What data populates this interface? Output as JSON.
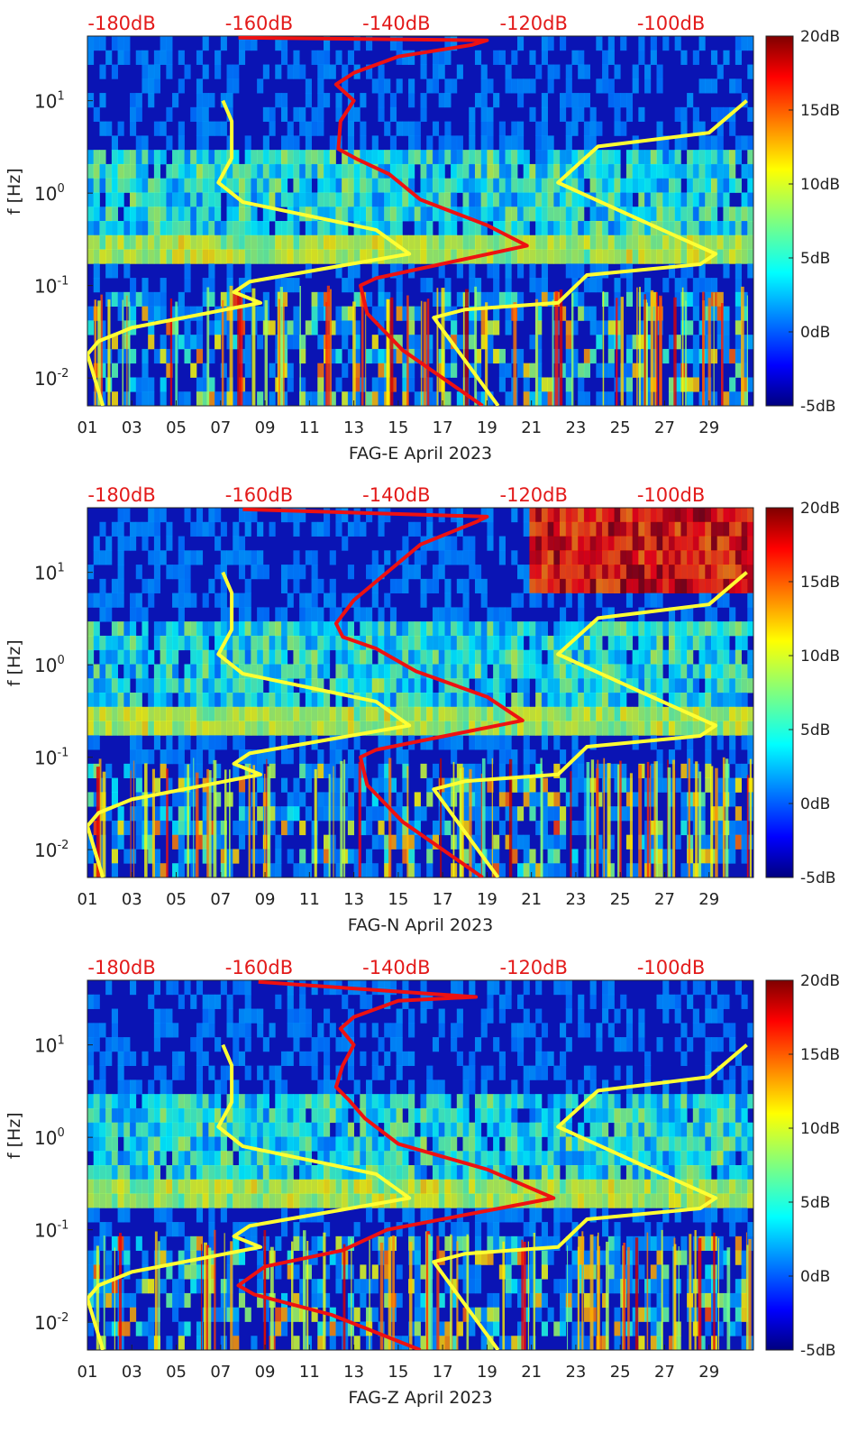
{
  "chart_data": [
    {
      "type": "heatmap",
      "title": "",
      "xlabel": "FAG-E April 2023",
      "ylabel": "f [Hz]",
      "x_ticks": [
        "01",
        "03",
        "05",
        "07",
        "09",
        "11",
        "13",
        "15",
        "17",
        "19",
        "21",
        "23",
        "25",
        "27",
        "29"
      ],
      "y_ticks": [
        {
          "value": 0.01,
          "base": "10",
          "exp": "-2"
        },
        {
          "value": 0.1,
          "base": "10",
          "exp": "-1"
        },
        {
          "value": 1,
          "base": "10",
          "exp": "0"
        },
        {
          "value": 10,
          "base": "10",
          "exp": "1"
        }
      ],
      "ylim": [
        0.005,
        50
      ],
      "y_scale": "log",
      "top_ticks": [
        "-180dB",
        "-160dB",
        "-140dB",
        "-120dB",
        "-100dB"
      ],
      "top_axis_range": [
        -185,
        -88
      ],
      "colorbar": {
        "ticks": [
          "-5dB",
          "0dB",
          "5dB",
          "10dB",
          "15dB",
          "20dB"
        ],
        "range": [
          -5,
          20
        ],
        "colormap": "jet"
      },
      "series": [
        {
          "color": "#ffff33",
          "points": [
            [
              19.5,
              0.005
            ],
            [
              16.6,
              0.045
            ],
            [
              18,
              0.055
            ],
            [
              22.2,
              0.065
            ],
            [
              23.5,
              0.13
            ],
            [
              28.6,
              0.17
            ],
            [
              29.3,
              0.22
            ],
            [
              26,
              0.5
            ],
            [
              22.2,
              1.3
            ],
            [
              24,
              3.2
            ],
            [
              29,
              4.5
            ],
            [
              30.7,
              10
            ]
          ]
        },
        {
          "color": "#ffff33",
          "points": [
            [
              1.7,
              0.005
            ],
            [
              1,
              0.018
            ],
            [
              1.5,
              0.025
            ],
            [
              3,
              0.035
            ],
            [
              8.8,
              0.065
            ],
            [
              7.6,
              0.085
            ],
            [
              8.3,
              0.11
            ],
            [
              15.5,
              0.22
            ],
            [
              14,
              0.4
            ],
            [
              8,
              0.8
            ],
            [
              6.9,
              1.3
            ],
            [
              7.5,
              2.4
            ],
            [
              7.5,
              6
            ],
            [
              7.1,
              10
            ]
          ]
        },
        {
          "color": "#ee1111",
          "points": [
            [
              18.8,
              0.005
            ],
            [
              15.2,
              0.02
            ],
            [
              13.6,
              0.05
            ],
            [
              13.3,
              0.1
            ],
            [
              14,
              0.12
            ],
            [
              20.8,
              0.27
            ],
            [
              19,
              0.45
            ],
            [
              16,
              0.85
            ],
            [
              14.6,
              1.6
            ],
            [
              13.2,
              2.3
            ],
            [
              12.3,
              3
            ],
            [
              12.4,
              6
            ],
            [
              13,
              10
            ],
            [
              12.2,
              15
            ],
            [
              13,
              20
            ],
            [
              15,
              30
            ],
            [
              18.3,
              40
            ],
            [
              19,
              45
            ],
            [
              7.8,
              48
            ]
          ]
        }
      ]
    },
    {
      "type": "heatmap",
      "title": "",
      "xlabel": "FAG-N April 2023",
      "ylabel": "f [Hz]",
      "x_ticks": [
        "01",
        "03",
        "05",
        "07",
        "09",
        "11",
        "13",
        "15",
        "17",
        "19",
        "21",
        "23",
        "25",
        "27",
        "29"
      ],
      "y_ticks": [
        {
          "value": 0.01,
          "base": "10",
          "exp": "-2"
        },
        {
          "value": 0.1,
          "base": "10",
          "exp": "-1"
        },
        {
          "value": 1,
          "base": "10",
          "exp": "0"
        },
        {
          "value": 10,
          "base": "10",
          "exp": "1"
        }
      ],
      "ylim": [
        0.005,
        50
      ],
      "y_scale": "log",
      "top_ticks": [
        "-180dB",
        "-160dB",
        "-140dB",
        "-120dB",
        "-100dB"
      ],
      "top_axis_range": [
        -185,
        -88
      ],
      "colorbar": {
        "ticks": [
          "-5dB",
          "0dB",
          "5dB",
          "10dB",
          "15dB",
          "20dB"
        ],
        "range": [
          -5,
          20
        ],
        "colormap": "jet"
      },
      "series": [
        {
          "color": "#ffff33",
          "points": [
            [
              19.5,
              0.005
            ],
            [
              16.6,
              0.045
            ],
            [
              18,
              0.055
            ],
            [
              22.2,
              0.065
            ],
            [
              23.5,
              0.13
            ],
            [
              28.6,
              0.17
            ],
            [
              29.3,
              0.22
            ],
            [
              26,
              0.5
            ],
            [
              22.2,
              1.3
            ],
            [
              24,
              3.2
            ],
            [
              29,
              4.5
            ],
            [
              30.7,
              10
            ]
          ]
        },
        {
          "color": "#ffff33",
          "points": [
            [
              1.7,
              0.005
            ],
            [
              1,
              0.018
            ],
            [
              1.5,
              0.025
            ],
            [
              3,
              0.035
            ],
            [
              8.8,
              0.065
            ],
            [
              7.6,
              0.085
            ],
            [
              8.3,
              0.11
            ],
            [
              15.5,
              0.22
            ],
            [
              14,
              0.4
            ],
            [
              8,
              0.8
            ],
            [
              6.9,
              1.3
            ],
            [
              7.5,
              2.4
            ],
            [
              7.5,
              6
            ],
            [
              7.1,
              10
            ]
          ]
        },
        {
          "color": "#ee1111",
          "points": [
            [
              18.8,
              0.005
            ],
            [
              15.2,
              0.02
            ],
            [
              13.6,
              0.05
            ],
            [
              13.3,
              0.1
            ],
            [
              14,
              0.12
            ],
            [
              20.6,
              0.25
            ],
            [
              19,
              0.45
            ],
            [
              15.8,
              0.85
            ],
            [
              14,
              1.5
            ],
            [
              12.5,
              2
            ],
            [
              12.2,
              2.8
            ],
            [
              13,
              5
            ],
            [
              14.5,
              10
            ],
            [
              16,
              20
            ],
            [
              18.5,
              35
            ],
            [
              19,
              40
            ],
            [
              8,
              48
            ]
          ]
        }
      ]
    },
    {
      "type": "heatmap",
      "title": "",
      "xlabel": "FAG-Z April 2023",
      "ylabel": "f [Hz]",
      "x_ticks": [
        "01",
        "03",
        "05",
        "07",
        "09",
        "11",
        "13",
        "15",
        "17",
        "19",
        "21",
        "23",
        "25",
        "27",
        "29"
      ],
      "y_ticks": [
        {
          "value": 0.01,
          "base": "10",
          "exp": "-2"
        },
        {
          "value": 0.1,
          "base": "10",
          "exp": "-1"
        },
        {
          "value": 1,
          "base": "10",
          "exp": "0"
        },
        {
          "value": 10,
          "base": "10",
          "exp": "1"
        }
      ],
      "ylim": [
        0.005,
        50
      ],
      "y_scale": "log",
      "top_ticks": [
        "-180dB",
        "-160dB",
        "-140dB",
        "-120dB",
        "-100dB"
      ],
      "top_axis_range": [
        -185,
        -88
      ],
      "colorbar": {
        "ticks": [
          "-5dB",
          "0dB",
          "5dB",
          "10dB",
          "15dB",
          "20dB"
        ],
        "range": [
          -5,
          20
        ],
        "colormap": "jet"
      },
      "series": [
        {
          "color": "#ffff33",
          "points": [
            [
              19.5,
              0.005
            ],
            [
              16.6,
              0.045
            ],
            [
              18,
              0.055
            ],
            [
              22.2,
              0.065
            ],
            [
              23.5,
              0.13
            ],
            [
              28.6,
              0.17
            ],
            [
              29.3,
              0.22
            ],
            [
              26,
              0.5
            ],
            [
              22.2,
              1.3
            ],
            [
              24,
              3.2
            ],
            [
              29,
              4.5
            ],
            [
              30.7,
              10
            ]
          ]
        },
        {
          "color": "#ffff33",
          "points": [
            [
              1.7,
              0.005
            ],
            [
              1,
              0.018
            ],
            [
              1.5,
              0.025
            ],
            [
              3,
              0.035
            ],
            [
              8.8,
              0.065
            ],
            [
              7.6,
              0.085
            ],
            [
              8.3,
              0.11
            ],
            [
              15.5,
              0.22
            ],
            [
              14,
              0.4
            ],
            [
              8,
              0.8
            ],
            [
              6.9,
              1.3
            ],
            [
              7.5,
              2.4
            ],
            [
              7.5,
              6
            ],
            [
              7.1,
              10
            ]
          ]
        },
        {
          "color": "#ee1111",
          "points": [
            [
              16,
              0.005
            ],
            [
              12,
              0.012
            ],
            [
              8.5,
              0.02
            ],
            [
              7.8,
              0.025
            ],
            [
              9,
              0.04
            ],
            [
              12.5,
              0.06
            ],
            [
              14.5,
              0.1
            ],
            [
              22,
              0.22
            ],
            [
              19,
              0.45
            ],
            [
              15,
              0.85
            ],
            [
              13.5,
              1.6
            ],
            [
              12.8,
              2.5
            ],
            [
              12.2,
              3.5
            ],
            [
              12.5,
              6
            ],
            [
              13,
              10
            ],
            [
              12.4,
              15
            ],
            [
              13,
              20
            ],
            [
              15,
              30
            ],
            [
              18.5,
              33
            ],
            [
              8.7,
              48
            ]
          ]
        }
      ]
    }
  ]
}
